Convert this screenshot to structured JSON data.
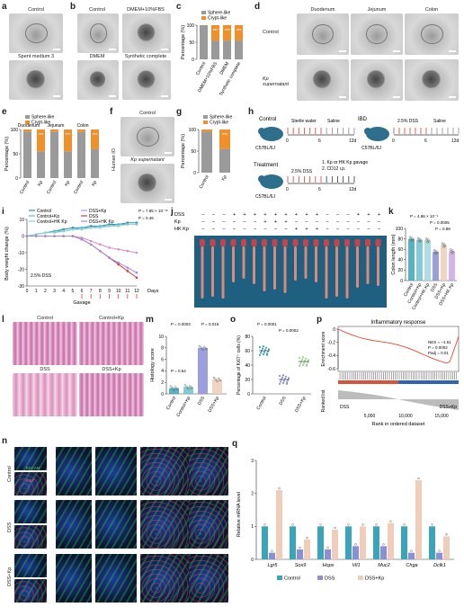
{
  "panels": {
    "a": {
      "label": "a",
      "images": [
        "Control",
        "Spent medium 3"
      ]
    },
    "b": {
      "label": "b",
      "images": [
        "Control",
        "DMEM+10%FBS",
        "DMEM",
        "Synthetic complete"
      ]
    },
    "c": {
      "label": "c",
      "ylabel": "Percentage (%)",
      "legend": [
        "Sphere-like",
        "Crypt-like"
      ],
      "categories": [
        "Control",
        "DMEM+10%FBS",
        "DMEM",
        "Synthetic complete"
      ],
      "stars": "***"
    },
    "d": {
      "label": "d",
      "columns": [
        "Duodenum",
        "Jejunum",
        "Colon"
      ],
      "rows": [
        "Control",
        "Kp supernatant"
      ]
    },
    "e": {
      "label": "e",
      "ylabel": "Percentage (%)",
      "legend": [
        "Sphere-like",
        "Crypt-like"
      ],
      "groups": [
        "Duodenum",
        "Jejunum",
        "Colon"
      ],
      "categories": [
        "Control",
        "Kp",
        "Control",
        "Kp",
        "Control",
        "Kp"
      ],
      "stars": "***"
    },
    "f": {
      "label": "f",
      "side": "Human IO",
      "images": [
        "Control",
        "Kp supernatant"
      ]
    },
    "g": {
      "label": "g",
      "ylabel": "Percentage (%)",
      "legend": [
        "Sphere-like",
        "Crypt-like"
      ],
      "categories": [
        "Control",
        "Kp"
      ],
      "stars": "***"
    },
    "h": {
      "label": "h",
      "control": "Control",
      "mouse1": "C57BL/6J",
      "water": "Sterile water",
      "saline": "Saline",
      "ibd": "IBD",
      "mouse2": "C57BL/6J",
      "dss": "2.5% DSS",
      "saline2": "Saline",
      "treatment": "Treatment",
      "mouse3": "C57BL/6J",
      "dss3": "2.5% DSS",
      "step1": "1. Kp or HK Kp gavage",
      "step2": "2. CD12 i.p.",
      "t0": "0",
      "t6": "6",
      "t12": "12d"
    },
    "i": {
      "label": "i",
      "ylabel": "Body weight change (%)",
      "xlabel": "Days",
      "gavage": "Gavage",
      "legend": [
        "Control",
        "Control+Kp",
        "Control+HK Kp",
        "DSS+Kp",
        "DSS",
        "DSS+HK Kp"
      ],
      "p1": "P = 7.85 × 10⁻¹⁵",
      "p2": "P = 0.46",
      "dss": "2.5% DSS",
      "ticks_x": [
        "0",
        "1",
        "2",
        "3",
        "4",
        "5",
        "6",
        "7",
        "8",
        "9",
        "10",
        "11",
        "12"
      ],
      "ticks_y": [
        "10",
        "0",
        "-10",
        "-20",
        "-30"
      ]
    },
    "j": {
      "label": "j",
      "rows": [
        "DSS",
        "Kp",
        "HK Kp"
      ]
    },
    "k": {
      "label": "k",
      "ylabel": "Colon length (mm)",
      "p1": "P = 4.86 × 10⁻⁹",
      "p2": "P = 0.0005",
      "p3": "P = 0.88",
      "categories": [
        "Control",
        "Control+Kp",
        "Control+HK Kp",
        "DSS",
        "DSS+Kp",
        "DSS+HK Kp"
      ],
      "ticks_y": [
        "100",
        "80",
        "60",
        "40",
        "20",
        "0"
      ]
    },
    "l": {
      "label": "l",
      "images": [
        "Control",
        "Control+Kp",
        "DSS",
        "DSS+Kp"
      ]
    },
    "m": {
      "label": "m",
      "ylabel": "Histology score",
      "p1": "P = 0.0003",
      "p2": "P = 0.016",
      "p3": "P = 0.64",
      "categories": [
        "Control",
        "Control+Kp",
        "DSS",
        "DSS+Kp"
      ],
      "ticks_y": [
        "10",
        "8",
        "6",
        "4",
        "2",
        "0"
      ]
    },
    "o": {
      "label": "o",
      "ylabel": "Percentage of Ki67⁺ cells (%)",
      "p1": "P = 0.0001",
      "p2": "P = 0.0002",
      "categories": [
        "Control",
        "DSS",
        "DSS+Kp"
      ],
      "ticks_y": [
        "80",
        "60",
        "40",
        "20",
        "0"
      ]
    },
    "p": {
      "label": "p",
      "title": "Inflammatory response",
      "ylabel1": "Enrichment score",
      "ylabel2": "Ranked list",
      "xlabel": "Rank in ordered dataset",
      "nes": "NES = –1.61",
      "pv": "P = 0.0002",
      "padj": "Padj = 0.01",
      "left": "DSS",
      "right": "DSS+Kp",
      "ticks_x": [
        "5,000",
        "10,000",
        "15,000"
      ],
      "ticks_y": [
        "0",
        "-0.2",
        "-0.4",
        "-0.6"
      ]
    },
    "n": {
      "label": "n",
      "rows": [
        "Control",
        "DSS",
        "DSS+Kp"
      ],
      "stain1": "EpCAM",
      "stain2": "Ki67"
    },
    "q": {
      "label": "q",
      "ylabel": "Relative mRNA level",
      "genes": [
        "Lgr5",
        "Sox9",
        "Hopx",
        "Vil1",
        "Muc2",
        "Chga",
        "Dclk1"
      ],
      "legend": [
        "Control",
        "DSS",
        "DSS+Kp"
      ],
      "ticks_y": [
        "3",
        "2",
        "1",
        "0"
      ]
    }
  },
  "chart_data": [
    {
      "type": "bar",
      "panel": "c",
      "categories": [
        "Control",
        "DMEM+10%FBS",
        "DMEM",
        "Synthetic complete"
      ],
      "series": [
        {
          "name": "Sphere-like",
          "values": [
            100,
            55,
            55,
            55
          ]
        },
        {
          "name": "Crypt-like",
          "values": [
            0,
            45,
            45,
            45
          ]
        }
      ],
      "ylim": [
        0,
        100
      ]
    },
    {
      "type": "bar",
      "panel": "e",
      "categories": [
        "Control",
        "Kp",
        "Control",
        "Kp",
        "Control",
        "Kp"
      ],
      "series": [
        {
          "name": "Sphere-like",
          "values": [
            95,
            55,
            95,
            55,
            95,
            60
          ]
        },
        {
          "name": "Crypt-like",
          "values": [
            5,
            45,
            5,
            45,
            5,
            40
          ]
        }
      ],
      "ylim": [
        0,
        100
      ]
    },
    {
      "type": "bar",
      "panel": "g",
      "categories": [
        "Control",
        "Kp"
      ],
      "series": [
        {
          "name": "Sphere-like",
          "values": [
            95,
            55
          ]
        },
        {
          "name": "Crypt-like",
          "values": [
            5,
            45
          ]
        }
      ],
      "ylim": [
        0,
        100
      ]
    },
    {
      "type": "line",
      "panel": "i",
      "x": [
        0,
        1,
        2,
        3,
        4,
        5,
        6,
        7,
        8,
        9,
        10,
        11,
        12
      ],
      "series": [
        {
          "name": "Control",
          "values": [
            0,
            1,
            2,
            3,
            4,
            5,
            5,
            6,
            6,
            7,
            7,
            8,
            8
          ]
        },
        {
          "name": "Control+Kp",
          "values": [
            0,
            1,
            2,
            3,
            3,
            4,
            5,
            5,
            6,
            6,
            7,
            7,
            7
          ]
        },
        {
          "name": "Control+HK Kp",
          "values": [
            0,
            1,
            2,
            2,
            3,
            4,
            4,
            5,
            5,
            6,
            6,
            7,
            7
          ]
        },
        {
          "name": "DSS+Kp",
          "values": [
            0,
            0,
            0,
            0,
            0,
            0,
            -1,
            -3,
            -5,
            -7,
            -8,
            -9,
            -10
          ]
        },
        {
          "name": "DSS",
          "values": [
            0,
            0,
            0,
            0,
            0,
            0,
            -2,
            -5,
            -9,
            -13,
            -17,
            -21,
            -25
          ]
        },
        {
          "name": "DSS+HK Kp",
          "values": [
            0,
            0,
            0,
            0,
            0,
            0,
            -2,
            -5,
            -9,
            -13,
            -16,
            -19,
            -22
          ]
        }
      ],
      "ylim": [
        -30,
        10
      ]
    },
    {
      "type": "bar",
      "panel": "k",
      "categories": [
        "Control",
        "Control+Kp",
        "Control+HK Kp",
        "DSS",
        "DSS+Kp",
        "DSS+HK Kp"
      ],
      "values": [
        80,
        78,
        77,
        55,
        68,
        56
      ],
      "ylim": [
        0,
        100
      ]
    },
    {
      "type": "bar",
      "panel": "m",
      "categories": [
        "Control",
        "Control+Kp",
        "DSS",
        "DSS+Kp"
      ],
      "values": [
        1,
        1.2,
        8,
        2.5
      ],
      "ylim": [
        0,
        10
      ]
    },
    {
      "type": "scatter",
      "panel": "o",
      "categories": [
        "Control",
        "DSS",
        "DSS+Kp"
      ],
      "values": [
        60,
        20,
        45
      ],
      "ylim": [
        0,
        80
      ]
    },
    {
      "type": "bar",
      "panel": "q",
      "categories": [
        "Lgr5",
        "Sox9",
        "Hopx",
        "Vil1",
        "Muc2",
        "Chga",
        "Dclk1"
      ],
      "series": [
        {
          "name": "Control",
          "values": [
            1,
            1,
            1,
            1,
            1,
            1,
            1
          ]
        },
        {
          "name": "DSS",
          "values": [
            0.2,
            0.3,
            0.3,
            0.4,
            0.4,
            0.2,
            0.2
          ]
        },
        {
          "name": "DSS+Kp",
          "values": [
            2.1,
            0.6,
            0.9,
            1.0,
            1.1,
            2.4,
            0.7
          ]
        }
      ],
      "ylim": [
        0,
        3
      ]
    }
  ],
  "colors": {
    "sphere": "#9a9a9a",
    "crypt": "#f0902a",
    "control": "#3aa5b8",
    "dss": "#8a8fd6",
    "dsskp": "#f0cdb8",
    "hk": "#c9a7e6",
    "line_red": "#d63b3b"
  }
}
